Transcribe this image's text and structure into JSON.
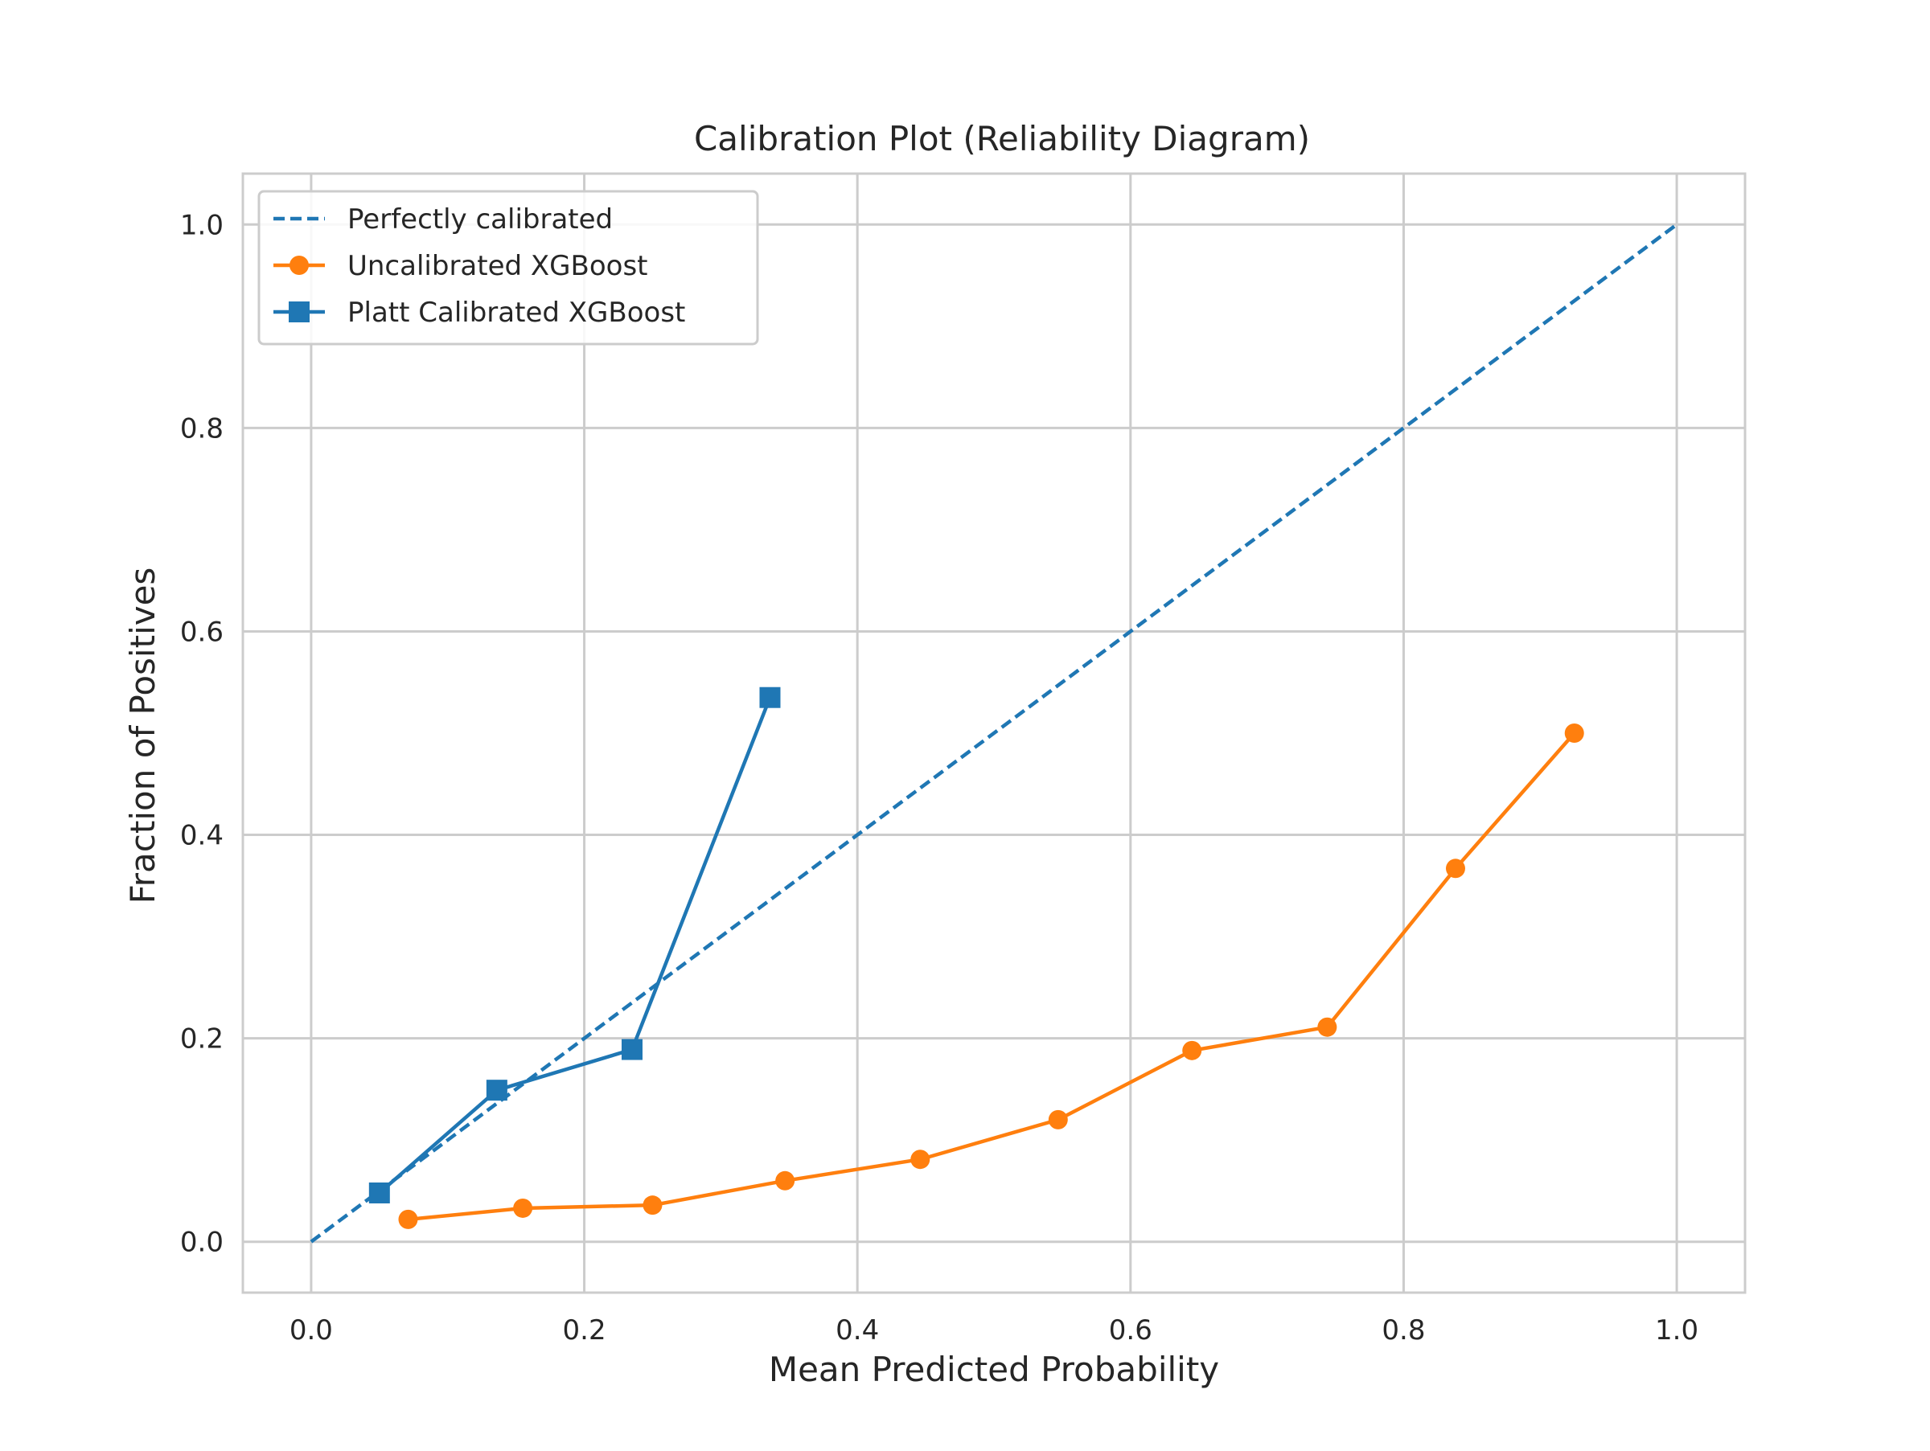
{
  "chart_data": {
    "type": "line",
    "title": "Calibration Plot (Reliability Diagram)",
    "xlabel": "Mean Predicted Probability",
    "ylabel": "Fraction of Positives",
    "xlim": [
      -0.05,
      1.05
    ],
    "ylim": [
      -0.05,
      1.05
    ],
    "grid": true,
    "legend_position": "upper-left",
    "x_ticks": [
      "0.0",
      "0.2",
      "0.4",
      "0.6",
      "0.8",
      "1.0"
    ],
    "y_ticks": [
      "0.0",
      "0.2",
      "0.4",
      "0.6",
      "0.8",
      "1.0"
    ],
    "series": [
      {
        "name": "Perfectly calibrated",
        "style": "dashed",
        "marker": "none",
        "color": "#1f77b4",
        "x": [
          0.0,
          1.0
        ],
        "y": [
          0.0,
          1.0
        ]
      },
      {
        "name": "Uncalibrated XGBoost",
        "style": "solid",
        "marker": "circle",
        "color": "#ff7f0e",
        "x": [
          0.071,
          0.155,
          0.25,
          0.347,
          0.446,
          0.547,
          0.645,
          0.744,
          0.838,
          0.925
        ],
        "y": [
          0.022,
          0.033,
          0.036,
          0.06,
          0.081,
          0.12,
          0.188,
          0.211,
          0.367,
          0.5
        ]
      },
      {
        "name": "Platt Calibrated XGBoost",
        "style": "solid",
        "marker": "square",
        "color": "#1f77b4",
        "x": [
          0.05,
          0.136,
          0.235,
          0.336
        ],
        "y": [
          0.048,
          0.149,
          0.189,
          0.535
        ]
      }
    ]
  }
}
